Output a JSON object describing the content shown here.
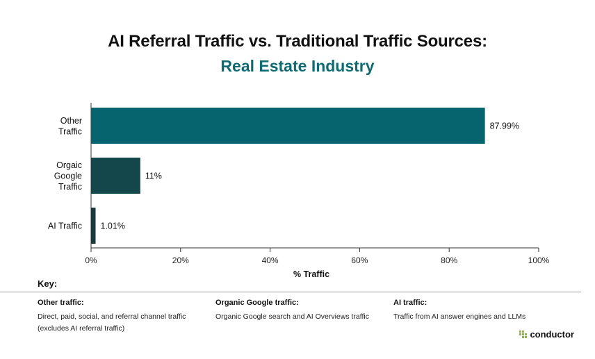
{
  "title": "AI Referral Traffic vs. Traditional Traffic Sources:",
  "subtitle": "Real Estate Industry",
  "colors": {
    "subtitle": "#0f6b73",
    "logo_mark": "#8ab73a",
    "axis": "#333333"
  },
  "chart_data": {
    "type": "bar",
    "orientation": "horizontal",
    "categories": [
      [
        "Other",
        "Traffic"
      ],
      [
        "Orgaic",
        "Google",
        "Traffic"
      ],
      [
        "AI Traffic"
      ]
    ],
    "values": [
      87.99,
      11,
      1.01
    ],
    "value_labels": [
      "87.99%",
      "11%",
      "1.01%"
    ],
    "bar_colors": [
      "#06646f",
      "#13474b",
      "#18393b"
    ],
    "xlabel": "% Traffic",
    "xlim": [
      0,
      100
    ],
    "xticks": [
      0,
      20,
      40,
      60,
      80,
      100
    ],
    "xtick_labels": [
      "0%",
      "20%",
      "40%",
      "60%",
      "80%",
      "100%"
    ],
    "grid": false,
    "legend": "none"
  },
  "key": {
    "title": "Key:",
    "items": [
      {
        "heading": "Other traffic:",
        "lines": [
          "Direct, paid, social, and referral channel traffic",
          "(excludes AI referral traffic)"
        ]
      },
      {
        "heading": "Organic Google traffic:",
        "lines": [
          "Organic Google search and AI Overviews traffic"
        ]
      },
      {
        "heading": "AI traffic:",
        "lines": [
          "Traffic from AI answer engines and LLMs"
        ]
      }
    ]
  },
  "logo": {
    "text": "conductor",
    "icon": "conductor-logo-icon"
  }
}
